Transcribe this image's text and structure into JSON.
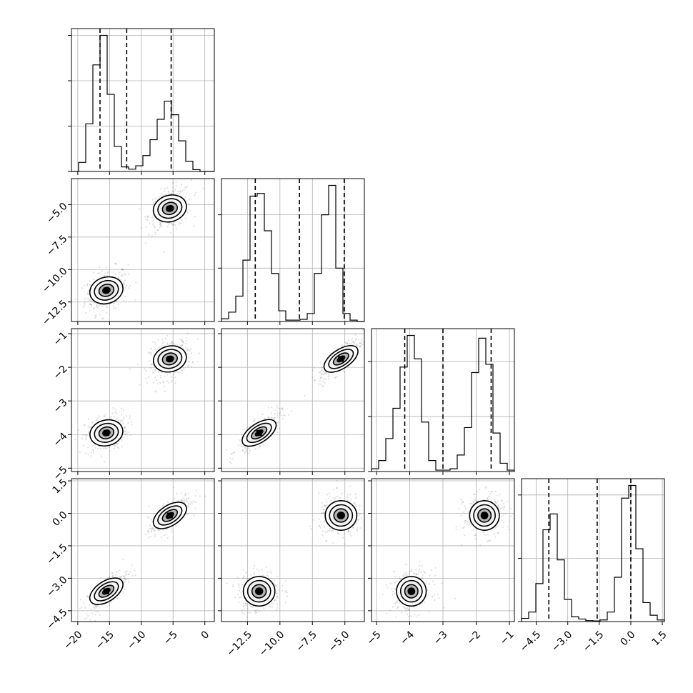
{
  "chart_data": {
    "type": "corner",
    "parameters": 4,
    "axes": [
      {
        "id": 0,
        "range": [
          -21,
          1.5
        ],
        "ticks": [
          -20,
          -15,
          -10,
          -5,
          0
        ],
        "tick_labels": [
          "−20",
          "−15",
          "−10",
          "−5",
          "0"
        ]
      },
      {
        "id": 1,
        "range": [
          -14.5,
          -3.5
        ],
        "ticks": [
          -12.5,
          -10.0,
          -7.5,
          -5.0
        ],
        "tick_labels": [
          "−12.5",
          "−10.0",
          "−7.5",
          "−5.0"
        ]
      },
      {
        "id": 2,
        "range": [
          -5.15,
          -0.85
        ],
        "ticks": [
          -5,
          -4,
          -3,
          -2,
          -1
        ],
        "tick_labels": [
          "−5",
          "−4",
          "−3",
          "−2",
          "−1"
        ]
      },
      {
        "id": 3,
        "range": [
          -5.2,
          1.6
        ],
        "ticks": [
          -4.5,
          -3.0,
          -1.5,
          0.0,
          1.5
        ],
        "tick_labels": [
          "−4.5",
          "−3.0",
          "−1.5",
          "0.0",
          "1.5"
        ]
      }
    ],
    "y_axes": [
      {
        "id": 1,
        "range": [
          -14.0,
          -3.0
        ],
        "ticks": [
          -12.5,
          -10.0,
          -7.5,
          -5.0
        ],
        "tick_labels": [
          "−12.5",
          "−10.0",
          "−7.5",
          "−5.0"
        ]
      },
      {
        "id": 2,
        "range": [
          -5.1,
          -0.85
        ],
        "ticks": [
          -5,
          -4,
          -3,
          -2,
          -1
        ],
        "tick_labels": [
          "−5",
          "−4",
          "−3",
          "−2",
          "−1"
        ]
      },
      {
        "id": 3,
        "range": [
          -5.0,
          1.6
        ],
        "ticks": [
          -4.5,
          -3.0,
          -1.5,
          0.0,
          1.5
        ],
        "tick_labels": [
          "−4.5",
          "−3.0",
          "−1.5",
          "0.0",
          "1.5"
        ]
      }
    ],
    "histograms": [
      {
        "param": 0,
        "quantiles": [
          -16.5,
          -12.3,
          -5.3
        ],
        "bins": [
          -21.0,
          -19.875,
          -18.75,
          -17.625,
          -16.5,
          -15.375,
          -14.25,
          -13.125,
          -12.0,
          -10.875,
          -9.75,
          -8.625,
          -7.5,
          -6.375,
          -5.25,
          -4.125,
          -3.0,
          -1.875,
          -0.75,
          0.375,
          1.5
        ],
        "counts": [
          0,
          40,
          210,
          470,
          600,
          340,
          110,
          20,
          10,
          25,
          70,
          140,
          230,
          310,
          250,
          135,
          45,
          8,
          0,
          0
        ]
      },
      {
        "param": 1,
        "quantiles": [
          -11.9,
          -8.5,
          -5.05
        ],
        "bins": [
          -14.5,
          -13.95,
          -13.4,
          -12.85,
          -12.3,
          -11.75,
          -11.2,
          -10.65,
          -10.1,
          -9.55,
          -9.0,
          -8.45,
          -7.9,
          -7.35,
          -6.8,
          -6.25,
          -5.7,
          -5.15,
          -4.6,
          -4.05,
          -3.5
        ],
        "counts": [
          10,
          35,
          95,
          230,
          470,
          480,
          340,
          180,
          40,
          5,
          5,
          8,
          30,
          180,
          400,
          510,
          200,
          30,
          5,
          0
        ]
      },
      {
        "param": 2,
        "quantiles": [
          -4.15,
          -3.0,
          -1.55
        ],
        "bins": [
          -5.15,
          -4.935,
          -4.72,
          -4.505,
          -4.29,
          -4.075,
          -3.86,
          -3.645,
          -3.43,
          -3.215,
          -3.0,
          -2.785,
          -2.57,
          -2.355,
          -2.14,
          -1.925,
          -1.71,
          -1.495,
          -1.28,
          -1.065,
          -0.85
        ],
        "counts": [
          10,
          40,
          120,
          230,
          380,
          495,
          410,
          180,
          40,
          5,
          5,
          10,
          60,
          160,
          360,
          485,
          390,
          140,
          30,
          5
        ]
      },
      {
        "param": 3,
        "quantiles": [
          -3.9,
          -1.6,
          0.0
        ],
        "bins": [
          -5.2,
          -4.86,
          -4.52,
          -4.18,
          -3.84,
          -3.5,
          -3.16,
          -2.82,
          -2.48,
          -2.14,
          -1.8,
          -1.46,
          -1.12,
          -0.78,
          -0.44,
          -0.1,
          0.24,
          0.58,
          0.92,
          1.26,
          1.6
        ],
        "counts": [
          10,
          30,
          120,
          290,
          340,
          195,
          70,
          15,
          8,
          3,
          2,
          5,
          30,
          140,
          390,
          430,
          230,
          60,
          20,
          5
        ]
      }
    ],
    "modes": [
      {
        "means": [
          -15.5,
          -11.6,
          -3.95,
          -3.6
        ]
      },
      {
        "means": [
          -5.5,
          -5.3,
          -1.75,
          -0.1
        ]
      }
    ]
  }
}
